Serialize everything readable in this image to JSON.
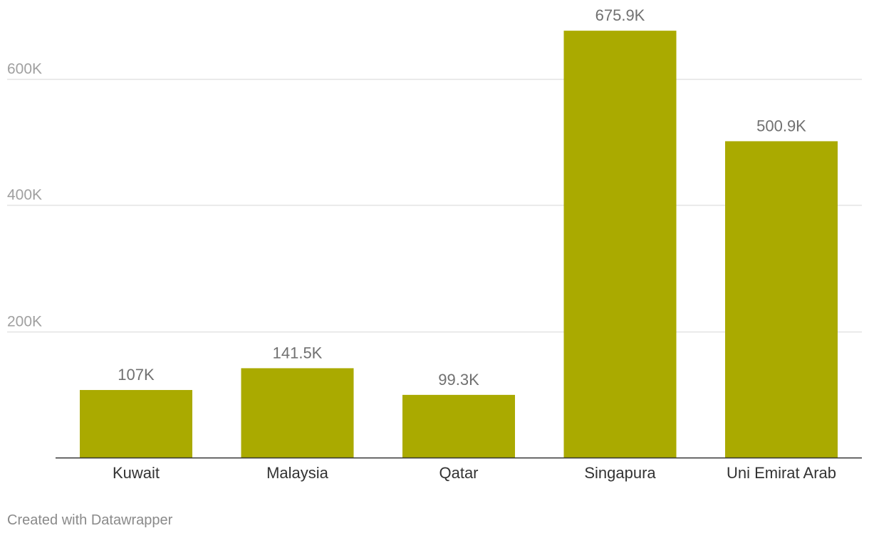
{
  "chart_data": {
    "type": "bar",
    "categories": [
      "Kuwait",
      "Malaysia",
      "Qatar",
      "Singapura",
      "Uni Emirat Arab"
    ],
    "values": [
      107000,
      141500,
      99300,
      675900,
      500900
    ],
    "value_labels": [
      "107K",
      "141.5K",
      "99.3K",
      "675.9K",
      "500.9K"
    ],
    "y_ticks": [
      200000,
      400000,
      600000
    ],
    "y_tick_labels": [
      "200K",
      "400K",
      "600K"
    ],
    "ylim": [
      0,
      700000
    ],
    "grid": true,
    "bar_color": "#aaaa00",
    "title": "",
    "xlabel": "",
    "ylabel": ""
  },
  "footer": {
    "credit": "Created with Datawrapper"
  },
  "colors": {
    "bar": "#aaaa00",
    "grid": "#e3e3e3",
    "axis": "#333333",
    "tick_label": "#a0a0a0",
    "category_label": "#333333",
    "value_label": "#707070"
  }
}
